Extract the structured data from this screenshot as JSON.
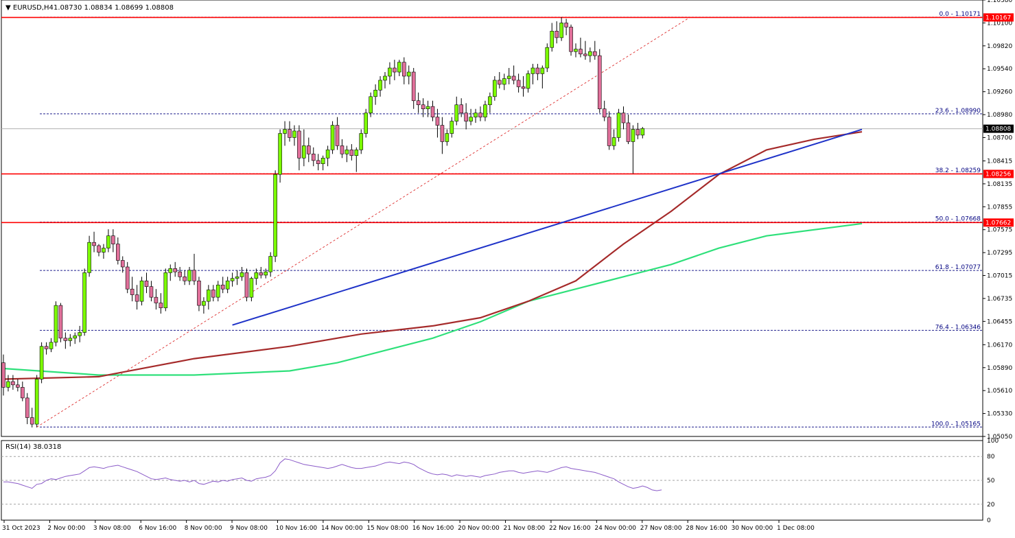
{
  "header": {
    "symbol": "EURUSD,H4",
    "ohlc": "1.08730 1.08834 1.08699 1.08808"
  },
  "rsi": {
    "label": "RSI(14) 38.0318",
    "levels": [
      80,
      50,
      20
    ],
    "ticks": [
      "100",
      "80",
      "50",
      "20",
      "0"
    ]
  },
  "colors": {
    "bull_candle": "#7CFC00",
    "bear_candle": "#E0709A",
    "ma_fast": "#A52A2A",
    "ma_slow": "#2EE07A",
    "trendline": "#1E32C8",
    "horizontal_level": "#FF0000",
    "fib_line": "#1E1E8C",
    "rsi_line": "#8A5AC8"
  },
  "chart_data": {
    "type": "candlestick",
    "ylim": [
      1.0505,
      1.1038
    ],
    "y_ticks": [
      "1.10380",
      "1.10100",
      "1.09820",
      "1.09540",
      "1.09260",
      "1.08980",
      "1.08700",
      "1.08415",
      "1.08135",
      "1.07855",
      "1.07575",
      "1.07295",
      "1.07015",
      "1.06735",
      "1.06455",
      "1.06170",
      "1.05890",
      "1.05610",
      "1.05330",
      "1.05050"
    ],
    "x_ticks": [
      "31 Oct 2023",
      "2 Nov 00:00",
      "3 Nov 08:00",
      "6 Nov 16:00",
      "8 Nov 00:00",
      "9 Nov 08:00",
      "10 Nov 16:00",
      "14 Nov 00:00",
      "15 Nov 08:00",
      "16 Nov 16:00",
      "20 Nov 00:00",
      "21 Nov 08:00",
      "22 Nov 16:00",
      "24 Nov 00:00",
      "27 Nov 08:00",
      "28 Nov 16:00",
      "30 Nov 00:00",
      "1 Dec 08:00"
    ],
    "current_price": "1.08808",
    "price_labels": [
      "1.10167",
      "1.08256",
      "1.07662"
    ],
    "horizontal_levels": [
      1.10167,
      1.08256,
      1.07662
    ],
    "fib_levels": [
      {
        "label": "0.0 - 1.10171",
        "value": 1.10171
      },
      {
        "label": "23.6 - 1.08990",
        "value": 1.0899
      },
      {
        "label": "38.2 - 1.08259",
        "value": 1.08259
      },
      {
        "label": "50.0 - 1.07668",
        "value": 1.07668
      },
      {
        "label": "61.8 - 1.07077",
        "value": 1.07077
      },
      {
        "label": "76.4 - 1.06346",
        "value": 1.06346
      },
      {
        "label": "100.0 - 1.05165",
        "value": 1.05165
      }
    ],
    "candles": [
      [
        1.0595,
        1.0605,
        1.0555,
        1.0565
      ],
      [
        1.0565,
        1.058,
        1.056,
        1.0572
      ],
      [
        1.0572,
        1.058,
        1.0562,
        1.0568
      ],
      [
        1.0568,
        1.0575,
        1.056,
        1.0565
      ],
      [
        1.0565,
        1.0572,
        1.0548,
        1.0552
      ],
      [
        1.0552,
        1.0558,
        1.052,
        1.0528
      ],
      [
        1.0528,
        1.054,
        1.0516,
        1.052
      ],
      [
        1.052,
        1.058,
        1.0516,
        1.0575
      ],
      [
        1.0575,
        1.062,
        1.057,
        1.0615
      ],
      [
        1.0615,
        1.062,
        1.0605,
        1.0612
      ],
      [
        1.0612,
        1.0625,
        1.0608,
        1.062
      ],
      [
        1.062,
        1.067,
        1.0615,
        1.0665
      ],
      [
        1.0665,
        1.0668,
        1.062,
        1.0625
      ],
      [
        1.0625,
        1.0632,
        1.0612,
        1.0622
      ],
      [
        1.0622,
        1.063,
        1.0615,
        1.0625
      ],
      [
        1.0625,
        1.0632,
        1.0618,
        1.0628
      ],
      [
        1.0628,
        1.064,
        1.062,
        1.0632
      ],
      [
        1.0632,
        1.071,
        1.0628,
        1.0705
      ],
      [
        1.0705,
        1.075,
        1.07,
        1.0742
      ],
      [
        1.0742,
        1.0755,
        1.073,
        1.0738
      ],
      [
        1.0738,
        1.074,
        1.0725,
        1.073
      ],
      [
        1.073,
        1.074,
        1.0722,
        1.0735
      ],
      [
        1.0735,
        1.0758,
        1.073,
        1.075
      ],
      [
        1.075,
        1.0758,
        1.073,
        1.074
      ],
      [
        1.074,
        1.0748,
        1.0715,
        1.072
      ],
      [
        1.072,
        1.0725,
        1.0705,
        1.0712
      ],
      [
        1.0712,
        1.0718,
        1.068,
        1.0685
      ],
      [
        1.0685,
        1.07,
        1.067,
        1.0678
      ],
      [
        1.0678,
        1.069,
        1.066,
        1.067
      ],
      [
        1.067,
        1.07,
        1.0665,
        1.0695
      ],
      [
        1.0695,
        1.0705,
        1.068,
        1.0688
      ],
      [
        1.0688,
        1.0695,
        1.067,
        1.0675
      ],
      [
        1.0675,
        1.0685,
        1.066,
        1.0668
      ],
      [
        1.0668,
        1.068,
        1.0655,
        1.0662
      ],
      [
        1.0662,
        1.071,
        1.0658,
        1.0705
      ],
      [
        1.0705,
        1.0715,
        1.0695,
        1.071
      ],
      [
        1.071,
        1.0718,
        1.07,
        1.0706
      ],
      [
        1.0706,
        1.0712,
        1.0695,
        1.07
      ],
      [
        1.07,
        1.0708,
        1.069,
        1.0695
      ],
      [
        1.0695,
        1.0712,
        1.069,
        1.0708
      ],
      [
        1.0708,
        1.0728,
        1.069,
        1.0695
      ],
      [
        1.0695,
        1.07,
        1.0658,
        1.0665
      ],
      [
        1.0665,
        1.0675,
        1.0655,
        1.067
      ],
      [
        1.067,
        1.069,
        1.066,
        1.0684
      ],
      [
        1.0684,
        1.069,
        1.067,
        1.0675
      ],
      [
        1.0675,
        1.0695,
        1.067,
        1.069
      ],
      [
        1.069,
        1.07,
        1.068,
        1.0685
      ],
      [
        1.0685,
        1.07,
        1.068,
        1.0695
      ],
      [
        1.0695,
        1.0705,
        1.0688,
        1.0698
      ],
      [
        1.0698,
        1.0708,
        1.069,
        1.07
      ],
      [
        1.07,
        1.0712,
        1.0695,
        1.0705
      ],
      [
        1.0705,
        1.071,
        1.067,
        1.0675
      ],
      [
        1.0675,
        1.07,
        1.067,
        1.0698
      ],
      [
        1.0698,
        1.071,
        1.069,
        1.0705
      ],
      [
        1.0705,
        1.0712,
        1.0698,
        1.0702
      ],
      [
        1.0702,
        1.071,
        1.0698,
        1.0706
      ],
      [
        1.0706,
        1.073,
        1.07,
        1.0725
      ],
      [
        1.0725,
        1.083,
        1.0718,
        1.0825
      ],
      [
        1.0825,
        1.088,
        1.0815,
        1.0875
      ],
      [
        1.0875,
        1.089,
        1.086,
        1.088
      ],
      [
        1.088,
        1.089,
        1.0865,
        1.087
      ],
      [
        1.087,
        1.0885,
        1.086,
        1.0878
      ],
      [
        1.0878,
        1.0885,
        1.083,
        1.0845
      ],
      [
        1.0845,
        1.088,
        1.0835,
        1.086
      ],
      [
        1.086,
        1.087,
        1.084,
        1.085
      ],
      [
        1.085,
        1.0858,
        1.0835,
        1.0842
      ],
      [
        1.0842,
        1.085,
        1.083,
        1.0838
      ],
      [
        1.0838,
        1.0848,
        1.083,
        1.0845
      ],
      [
        1.0845,
        1.086,
        1.0835,
        1.0855
      ],
      [
        1.0855,
        1.089,
        1.085,
        1.0885
      ],
      [
        1.0885,
        1.0895,
        1.0855,
        1.086
      ],
      [
        1.086,
        1.0868,
        1.0845,
        1.085
      ],
      [
        1.085,
        1.086,
        1.084,
        1.0855
      ],
      [
        1.0855,
        1.0862,
        1.0842,
        1.0848
      ],
      [
        1.0848,
        1.0858,
        1.0828,
        1.0855
      ],
      [
        1.0855,
        1.088,
        1.085,
        1.0875
      ],
      [
        1.0875,
        1.0905,
        1.087,
        1.09
      ],
      [
        1.09,
        1.0925,
        1.0895,
        1.092
      ],
      [
        1.092,
        1.0935,
        1.091,
        1.0928
      ],
      [
        1.0928,
        1.0945,
        1.092,
        1.094
      ],
      [
        1.094,
        1.095,
        1.093,
        1.0945
      ],
      [
        1.0945,
        1.0962,
        1.0935,
        1.0955
      ],
      [
        1.0955,
        1.0965,
        1.094,
        1.095
      ],
      [
        1.095,
        1.0965,
        1.0945,
        1.0962
      ],
      [
        1.0962,
        1.0968,
        1.0935,
        1.0945
      ],
      [
        1.0945,
        1.0958,
        1.0935,
        1.095
      ],
      [
        1.095,
        1.0955,
        1.0905,
        1.0915
      ],
      [
        1.0915,
        1.0925,
        1.09,
        1.091
      ],
      [
        1.091,
        1.0918,
        1.0895,
        1.0905
      ],
      [
        1.0905,
        1.0915,
        1.0895,
        1.0908
      ],
      [
        1.0908,
        1.0915,
        1.089,
        1.0895
      ],
      [
        1.0895,
        1.0905,
        1.087,
        1.0885
      ],
      [
        1.0885,
        1.0895,
        1.085,
        1.0865
      ],
      [
        1.0865,
        1.088,
        1.086,
        1.0875
      ],
      [
        1.0875,
        1.0895,
        1.087,
        1.089
      ],
      [
        1.089,
        1.092,
        1.0885,
        1.091
      ],
      [
        1.091,
        1.0918,
        1.0895,
        1.09
      ],
      [
        1.09,
        1.0912,
        1.088,
        1.089
      ],
      [
        1.089,
        1.0905,
        1.0885,
        1.0895
      ],
      [
        1.0895,
        1.0905,
        1.0888,
        1.09
      ],
      [
        1.09,
        1.0908,
        1.089,
        1.0895
      ],
      [
        1.0895,
        1.0915,
        1.089,
        1.091
      ],
      [
        1.091,
        1.0925,
        1.09,
        1.092
      ],
      [
        1.092,
        1.0945,
        1.0915,
        1.094
      ],
      [
        1.094,
        1.095,
        1.093,
        1.0935
      ],
      [
        1.0935,
        1.0948,
        1.0928,
        1.0942
      ],
      [
        1.0942,
        1.0955,
        1.0935,
        1.0945
      ],
      [
        1.0945,
        1.0958,
        1.0935,
        1.094
      ],
      [
        1.094,
        1.0948,
        1.0925,
        1.0932
      ],
      [
        1.0932,
        1.0945,
        1.092,
        1.093
      ],
      [
        1.093,
        1.0952,
        1.0925,
        1.0948
      ],
      [
        1.0948,
        1.096,
        1.0935,
        1.0955
      ],
      [
        1.0955,
        1.096,
        1.094,
        1.0948
      ],
      [
        1.0948,
        1.0958,
        1.093,
        1.0955
      ],
      [
        1.0955,
        1.0985,
        1.095,
        1.098
      ],
      [
        1.098,
        1.101,
        1.0975,
        1.1
      ],
      [
        1.1,
        1.1012,
        1.0985,
        1.0992
      ],
      [
        1.0992,
        1.1017,
        1.0988,
        1.101
      ],
      [
        1.101,
        1.1015,
        1.0995,
        1.1005
      ],
      [
        1.1005,
        1.1008,
        1.097,
        1.0975
      ],
      [
        1.0975,
        1.0985,
        1.0968,
        1.0978
      ],
      [
        1.0978,
        1.0992,
        1.0968,
        1.0972
      ],
      [
        1.0972,
        1.0988,
        1.0965,
        1.097
      ],
      [
        1.097,
        1.098,
        1.0962,
        1.0975
      ],
      [
        1.0975,
        1.0988,
        1.0965,
        1.097
      ],
      [
        1.097,
        1.0978,
        1.09,
        1.0905
      ],
      [
        1.0905,
        1.0915,
        1.089,
        1.0895
      ],
      [
        1.0895,
        1.0902,
        1.0855,
        1.086
      ],
      [
        1.086,
        1.088,
        1.0855,
        1.087
      ],
      [
        1.087,
        1.0905,
        1.0865,
        1.09
      ],
      [
        1.09,
        1.0908,
        1.088,
        1.0888
      ],
      [
        1.0888,
        1.0898,
        1.0862,
        1.0865
      ],
      [
        1.0865,
        1.0885,
        1.0826,
        1.088
      ],
      [
        1.088,
        1.0888,
        1.0868,
        1.0873
      ],
      [
        1.0873,
        1.0883,
        1.0869,
        1.0881
      ]
    ],
    "ma_fast_points": [
      [
        0,
        1.0575
      ],
      [
        20,
        1.0578
      ],
      [
        40,
        1.06
      ],
      [
        60,
        1.0615
      ],
      [
        75,
        1.063
      ],
      [
        90,
        1.064
      ],
      [
        100,
        1.065
      ],
      [
        110,
        1.067
      ],
      [
        120,
        1.0695
      ],
      [
        130,
        1.074
      ],
      [
        140,
        1.078
      ],
      [
        150,
        1.0825
      ],
      [
        160,
        1.0855
      ],
      [
        170,
        1.0868
      ],
      [
        180,
        1.0877
      ]
    ],
    "ma_slow_points": [
      [
        0,
        1.0588
      ],
      [
        20,
        1.058
      ],
      [
        40,
        1.058
      ],
      [
        60,
        1.0585
      ],
      [
        70,
        1.0595
      ],
      [
        80,
        1.061
      ],
      [
        90,
        1.0625
      ],
      [
        100,
        1.0645
      ],
      [
        110,
        1.067
      ],
      [
        120,
        1.0685
      ],
      [
        130,
        1.07
      ],
      [
        140,
        1.0715
      ],
      [
        150,
        1.0735
      ],
      [
        160,
        1.075
      ],
      [
        180,
        1.0765
      ]
    ],
    "trendline": [
      [
        48,
        1.0641
      ],
      [
        180,
        1.088
      ]
    ],
    "fib_diagonal": [
      [
        7,
        1.05165
      ],
      [
        144,
        1.10171
      ]
    ],
    "rsi_values": [
      48,
      48,
      47,
      46,
      44,
      42,
      40,
      45,
      46,
      50,
      52,
      51,
      53,
      55,
      56,
      57,
      58,
      62,
      66,
      67,
      66,
      65,
      67,
      68,
      69,
      67,
      65,
      63,
      61,
      58,
      55,
      52,
      51,
      52,
      53,
      51,
      50,
      49,
      50,
      48,
      50,
      46,
      45,
      47,
      49,
      48,
      50,
      49,
      51,
      52,
      53,
      50,
      49,
      52,
      53,
      54,
      56,
      62,
      72,
      77,
      76,
      74,
      72,
      70,
      69,
      68,
      67,
      66,
      65,
      66,
      68,
      70,
      68,
      66,
      65,
      65,
      66,
      67,
      68,
      70,
      72,
      73,
      72,
      71,
      73,
      72,
      70,
      66,
      63,
      60,
      58,
      57,
      58,
      57,
      55,
      57,
      56,
      55,
      56,
      55,
      54,
      56,
      57,
      58,
      60,
      61,
      62,
      62,
      60,
      59,
      60,
      61,
      62,
      61,
      60,
      62,
      64,
      66,
      67,
      65,
      64,
      63,
      62,
      61,
      60,
      58,
      56,
      54,
      52,
      48,
      45,
      42,
      40,
      41,
      43,
      41,
      38,
      37,
      38
    ]
  }
}
